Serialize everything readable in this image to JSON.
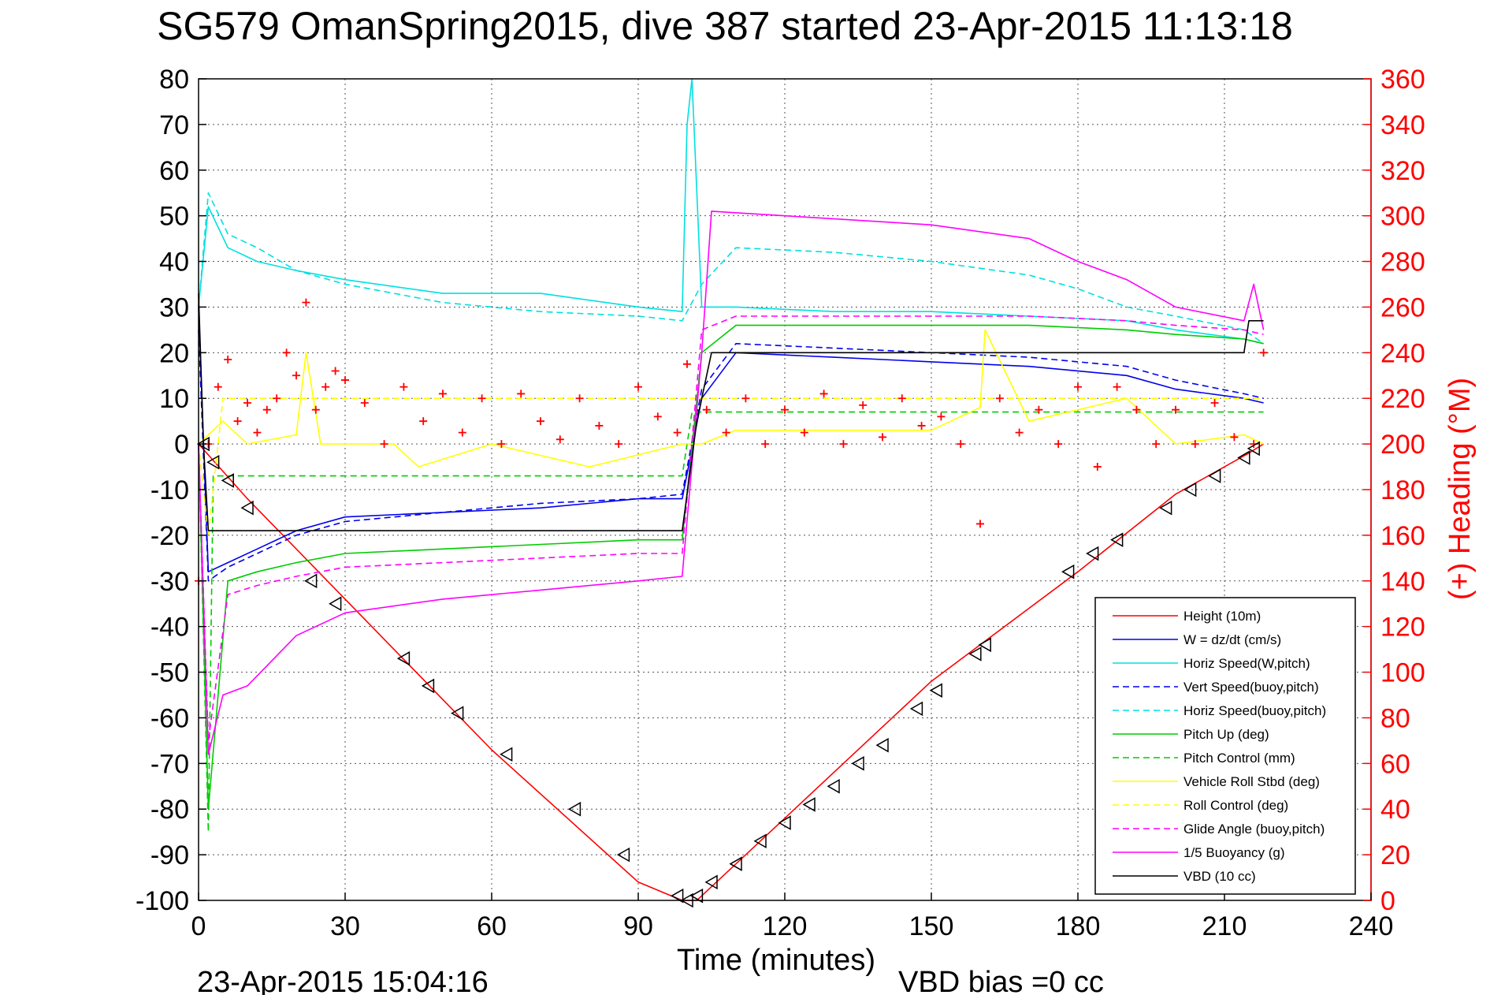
{
  "title": "SG579 OmanSpring2015, dive 387 started 23-Apr-2015 11:13:18",
  "footer": {
    "timestamp": "23-Apr-2015 15:04:16",
    "vbd_bias": "VBD bias =0 cc"
  },
  "colors": {
    "red": "#ff0000",
    "blue": "#0000ee",
    "cyan": "#00e0e0",
    "green": "#00cc00",
    "yellow": "#ffff00",
    "magenta": "#ff00ff",
    "black": "#000000"
  },
  "chart_data": {
    "type": "line",
    "title": "SG579 OmanSpring2015, dive 387 started 23-Apr-2015 11:13:18",
    "xlabel": "Time (minutes)",
    "ylabel": "",
    "y2label": "(+) Heading (°M)",
    "xlim": [
      0,
      240
    ],
    "ylim": [
      -100,
      80
    ],
    "y2lim": [
      0,
      360
    ],
    "x_ticks": [
      "0",
      "30",
      "60",
      "90",
      "120",
      "150",
      "180",
      "210",
      "240"
    ],
    "y_ticks": [
      "80",
      "70",
      "60",
      "50",
      "40",
      "30",
      "20",
      "10",
      "0",
      "-10",
      "-20",
      "-30",
      "-40",
      "-50",
      "-60",
      "-70",
      "-80",
      "-90",
      "-100"
    ],
    "y2_ticks": [
      "360",
      "340",
      "320",
      "300",
      "280",
      "260",
      "240",
      "220",
      "200",
      "180",
      "160",
      "140",
      "120",
      "100",
      "80",
      "60",
      "40",
      "20",
      "0"
    ],
    "grid": true,
    "legend_position": "bottom-right",
    "series": [
      {
        "name": "Height (10m)",
        "color": "#ff0000",
        "style": "solid",
        "x": [
          0,
          10,
          30,
          60,
          90,
          99,
          102,
          120,
          150,
          180,
          200,
          215,
          218
        ],
        "y": [
          0,
          -12,
          -34,
          -67,
          -96,
          -100,
          -100,
          -82,
          -52,
          -28,
          -11,
          -2,
          0
        ]
      },
      {
        "name": "W = dz/dt (cm/s)",
        "color": "#0000ee",
        "style": "solid",
        "x": [
          0,
          2,
          6,
          12,
          20,
          30,
          50,
          70,
          90,
          99,
          103,
          110,
          130,
          150,
          170,
          190,
          200,
          214,
          218
        ],
        "y": [
          30,
          -28,
          -26,
          -23,
          -19,
          -16,
          -15,
          -14,
          -12,
          -12,
          10,
          20,
          19,
          18,
          17,
          15,
          12,
          10,
          9
        ]
      },
      {
        "name": "Horiz Speed(W,pitch)",
        "color": "#00e0e0",
        "style": "solid",
        "x": [
          0,
          2,
          6,
          12,
          20,
          30,
          50,
          70,
          90,
          99,
          100,
          101,
          103,
          110,
          130,
          150,
          170,
          190,
          200,
          214,
          218
        ],
        "y": [
          30,
          52,
          43,
          40,
          38,
          36,
          33,
          33,
          30,
          29,
          70,
          80,
          30,
          30,
          29,
          29,
          28,
          27,
          25,
          23,
          22
        ]
      },
      {
        "name": "Vert Speed(buoy,pitch)",
        "color": "#0000ee",
        "style": "dashed",
        "x": [
          0,
          2,
          6,
          12,
          20,
          30,
          50,
          70,
          90,
          99,
          103,
          110,
          130,
          150,
          170,
          190,
          200,
          214,
          218
        ],
        "y": [
          25,
          -30,
          -27,
          -24,
          -20,
          -17,
          -15,
          -13,
          -12,
          -11,
          12,
          22,
          21,
          20,
          19,
          17,
          14,
          11,
          10
        ]
      },
      {
        "name": "Horiz Speed(buoy,pitch)",
        "color": "#00e0e0",
        "style": "dashed",
        "x": [
          0,
          2,
          6,
          12,
          20,
          30,
          50,
          70,
          90,
          99,
          103,
          110,
          130,
          150,
          170,
          180,
          190,
          200,
          214,
          218
        ],
        "y": [
          30,
          55,
          46,
          43,
          38,
          35,
          31,
          29,
          28,
          27,
          35,
          43,
          42,
          40,
          37,
          34,
          30,
          28,
          25,
          22
        ]
      },
      {
        "name": "Pitch Up (deg)",
        "color": "#00cc00",
        "style": "solid",
        "x": [
          0,
          2,
          6,
          12,
          20,
          30,
          50,
          70,
          90,
          99,
          103,
          110,
          130,
          150,
          170,
          190,
          200,
          214,
          218
        ],
        "y": [
          0,
          -80,
          -30,
          -28,
          -26,
          -24,
          -23,
          -22,
          -21,
          -21,
          20,
          26,
          26,
          26,
          26,
          25,
          24,
          23,
          22
        ]
      },
      {
        "name": "Pitch Control (mm)",
        "color": "#00cc00",
        "style": "dashed",
        "x": [
          0,
          2,
          3,
          99,
          101,
          218
        ],
        "y": [
          0,
          -85,
          -7,
          -7,
          7,
          7
        ]
      },
      {
        "name": "Vehicle Roll Stbd (deg)",
        "color": "#ffff00",
        "style": "solid",
        "x": [
          0,
          5,
          10,
          20,
          22,
          25,
          40,
          45,
          60,
          80,
          99,
          103,
          110,
          130,
          150,
          160,
          161,
          170,
          190,
          200,
          214,
          218
        ],
        "y": [
          0,
          5,
          0,
          2,
          20,
          0,
          0,
          -5,
          0,
          -5,
          0,
          0,
          3,
          3,
          3,
          8,
          25,
          5,
          10,
          0,
          2,
          0
        ]
      },
      {
        "name": "Roll Control (deg)",
        "color": "#ffff00",
        "style": "dashed",
        "x": [
          0,
          2,
          5,
          10,
          103,
          105,
          218
        ],
        "y": [
          0,
          -20,
          10,
          10,
          10,
          10,
          10
        ]
      },
      {
        "name": "Glide Angle (buoy,pitch)",
        "color": "#ff00ff",
        "style": "dashed",
        "x": [
          0,
          2,
          6,
          12,
          20,
          30,
          50,
          70,
          90,
          99,
          103,
          110,
          130,
          150,
          170,
          190,
          200,
          214,
          218
        ],
        "y": [
          0,
          -65,
          -33,
          -31,
          -29,
          -27,
          -26,
          -25,
          -24,
          -24,
          25,
          28,
          28,
          28,
          28,
          27,
          26,
          25,
          24
        ]
      },
      {
        "name": "1/5 Buoyancy (g)",
        "color": "#ff00ff",
        "style": "solid",
        "x": [
          0,
          2,
          5,
          10,
          20,
          30,
          50,
          70,
          90,
          99,
          103,
          105,
          120,
          150,
          170,
          180,
          190,
          200,
          214,
          216,
          218
        ],
        "y": [
          0,
          -68,
          -55,
          -53,
          -42,
          -37,
          -34,
          -32,
          -30,
          -29,
          20,
          51,
          50,
          48,
          45,
          40,
          36,
          30,
          27,
          35,
          25
        ]
      },
      {
        "name": "VBD (10 cc)",
        "color": "#000000",
        "style": "solid",
        "x": [
          0,
          1,
          2,
          3,
          99,
          102,
          105,
          214,
          215,
          218
        ],
        "y": [
          33,
          0,
          -19,
          -19,
          -19,
          5,
          20,
          20,
          27,
          27
        ]
      }
    ],
    "heading_series": {
      "name": "(+) Heading (°M)",
      "color": "#ff0000",
      "marker": "+",
      "x": [
        0,
        2,
        4,
        6,
        8,
        10,
        12,
        14,
        16,
        18,
        20,
        22,
        24,
        26,
        28,
        30,
        34,
        38,
        42,
        46,
        50,
        54,
        58,
        62,
        66,
        70,
        74,
        78,
        82,
        86,
        90,
        94,
        98,
        100,
        104,
        108,
        112,
        116,
        120,
        124,
        128,
        132,
        136,
        140,
        144,
        148,
        152,
        156,
        160,
        164,
        168,
        172,
        176,
        180,
        184,
        188,
        192,
        196,
        200,
        204,
        208,
        212,
        216,
        218
      ],
      "y": [
        140,
        200,
        225,
        237,
        210,
        218,
        205,
        215,
        220,
        240,
        230,
        262,
        215,
        225,
        232,
        228,
        218,
        200,
        225,
        210,
        222,
        205,
        220,
        200,
        222,
        210,
        202,
        220,
        208,
        200,
        225,
        212,
        205,
        235,
        215,
        205,
        220,
        200,
        215,
        205,
        222,
        200,
        217,
        203,
        220,
        208,
        212,
        200,
        165,
        220,
        205,
        215,
        200,
        225,
        190,
        225,
        215,
        200,
        215,
        200,
        218,
        203,
        200,
        240
      ]
    },
    "marker_series": {
      "name": "triangle markers",
      "color": "#000000",
      "marker": "triangle",
      "x": [
        1,
        3,
        6,
        10,
        23,
        28,
        42,
        47,
        53,
        63,
        77,
        87,
        98,
        100,
        102,
        105,
        110,
        115,
        120,
        125,
        130,
        135,
        140,
        147,
        151,
        159,
        161,
        178,
        183,
        188,
        198,
        203,
        208,
        214,
        216
      ],
      "y": [
        0,
        -4,
        -8,
        -14,
        -30,
        -35,
        -47,
        -53,
        -59,
        -68,
        -80,
        -90,
        -99,
        -100,
        -99,
        -96,
        -92,
        -87,
        -83,
        -79,
        -75,
        -70,
        -66,
        -58,
        -54,
        -46,
        -44,
        -28,
        -24,
        -21,
        -14,
        -10,
        -7,
        -3,
        -1
      ]
    }
  }
}
